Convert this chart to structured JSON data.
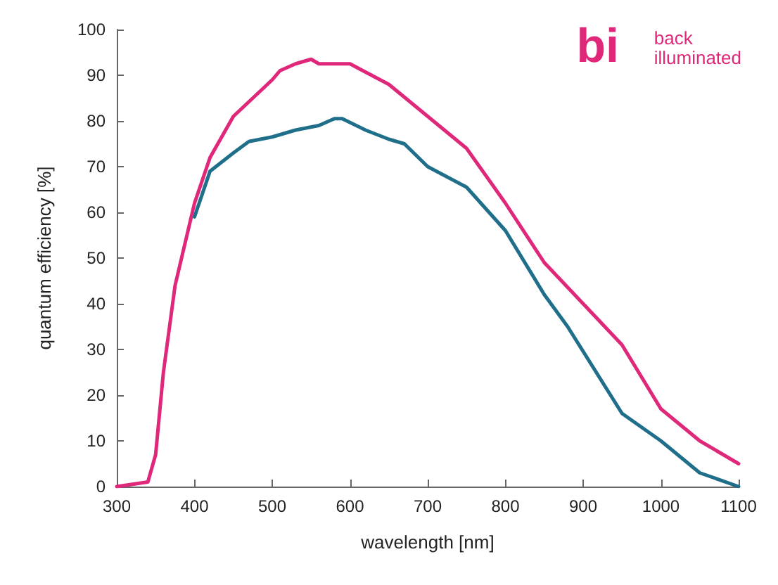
{
  "chart_data": {
    "type": "line",
    "xlabel": "wavelength [nm]",
    "ylabel": "quantum efficiency [%]",
    "xlim": [
      300,
      1100
    ],
    "xticks": [
      300,
      400,
      500,
      600,
      700,
      800,
      900,
      1000,
      1100
    ],
    "ylim": [
      0,
      100
    ],
    "yticks": [
      0,
      10,
      20,
      30,
      40,
      50,
      60,
      70,
      80,
      90,
      100
    ],
    "grid": false,
    "marker": "none",
    "line_style": "solid",
    "annotations": [
      "bi",
      "back illuminated"
    ],
    "series": [
      {
        "color": "#e0287a",
        "x": [
          300,
          340,
          350,
          360,
          375,
          400,
          420,
          450,
          500,
          510,
          530,
          550,
          560,
          600,
          650,
          700,
          750,
          800,
          850,
          900,
          950,
          1000,
          1050,
          1100
        ],
        "values": [
          0,
          1,
          7,
          25,
          44,
          62,
          72,
          81,
          89,
          91,
          92.5,
          93.5,
          92.5,
          92.5,
          88,
          81,
          74,
          62,
          49,
          40,
          31,
          17,
          10,
          5
        ]
      },
      {
        "color": "#1f6f8b",
        "x": [
          400,
          420,
          450,
          470,
          500,
          530,
          560,
          580,
          590,
          620,
          650,
          670,
          700,
          750,
          800,
          850,
          880,
          950,
          1000,
          1050,
          1100
        ],
        "values": [
          59,
          69,
          73,
          75.5,
          76.5,
          78,
          79,
          80.5,
          80.5,
          78,
          76,
          75,
          70,
          65.5,
          56,
          42,
          35,
          16,
          10,
          3,
          0
        ]
      }
    ]
  }
}
